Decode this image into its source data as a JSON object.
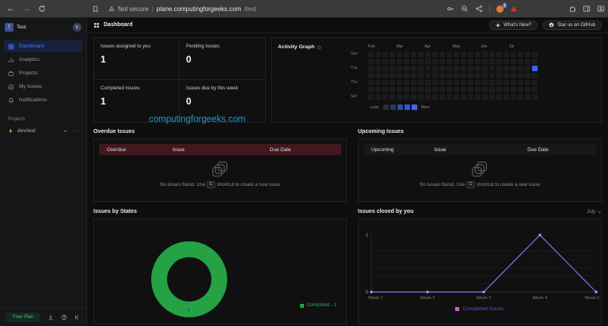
{
  "browser": {
    "security_label": "Not secure",
    "url_domain": "plane.computingforgeeks.com",
    "url_path": "/test",
    "extension_badge": "1"
  },
  "glyphs": {
    "back": "←",
    "forward": "→",
    "more": "···"
  },
  "header": {
    "title": "Dashboard",
    "whats_new_label": "What's New?",
    "star_label": "Star us on GitHub"
  },
  "sidebar": {
    "workspace": {
      "avatar_initial": "T",
      "name": "Test",
      "user_initial": "K"
    },
    "nav": [
      {
        "label": "Dashboard"
      },
      {
        "label": "Analytics"
      },
      {
        "label": "Projects"
      },
      {
        "label": "My Issues"
      },
      {
        "label": "Notifications"
      }
    ],
    "projects_heading": "Projects",
    "project_name": "dev/test",
    "plan_label": "Free Plan"
  },
  "stats": {
    "cards": [
      {
        "label": "Issues assigned to you",
        "value": "1"
      },
      {
        "label": "Pending Issues",
        "value": "0"
      },
      {
        "label": "Completed Issues",
        "value": "1"
      },
      {
        "label": "Issues due by this week",
        "value": "0"
      }
    ]
  },
  "watermark": "computingforgeeks.com",
  "activity": {
    "title": "Activity Graph",
    "months": [
      "Feb",
      "Mar",
      "Apr",
      "May",
      "Jun",
      "Jul"
    ],
    "day_labels": [
      "Sun",
      "Tue",
      "Thu",
      "Sat"
    ],
    "weeks": 24,
    "days_per_week": 7,
    "active_cell": {
      "week": 23,
      "day": 2
    },
    "cell_color": "#1c1c1e",
    "active_color": "#3a63e8",
    "legend": {
      "less": "Less",
      "more": "More",
      "colors": [
        "#2e2e30",
        "#24386e",
        "#2c4ba8",
        "#3558d4",
        "#3f6af5"
      ]
    }
  },
  "overdue": {
    "title": "Overdue Issues",
    "columns": [
      "Overdue",
      "Issue",
      "Due Date"
    ],
    "empty": {
      "prefix": "No issues found. Use",
      "key": "C",
      "suffix": "shortcut to create a new issue"
    }
  },
  "upcoming": {
    "title": "Upcoming Issues",
    "columns": [
      "Upcoming",
      "Issue",
      "Due Date"
    ],
    "empty": {
      "prefix": "No issues found. Use",
      "key": "C",
      "suffix": "shortcut to create a new issue"
    }
  },
  "states": {
    "title": "Issues by States",
    "value_label": "1",
    "legend_label": "Completed - 1",
    "color": "#25a244"
  },
  "closed": {
    "title": "Issues closed by you",
    "month_filter": "July",
    "legend_label": "Completed Issues",
    "line_color": "#8d6fe8",
    "point_color": "#b9a2f5",
    "legend_swatch_color": "#d45fd0",
    "legend_text_color": "#5f55d6"
  },
  "chart_data": [
    {
      "type": "pie",
      "title": "Issues by States",
      "labels": [
        "Completed"
      ],
      "values": [
        1
      ],
      "colors": [
        "#25a244"
      ],
      "donut": true,
      "legend_position": "bottom-right",
      "legend_entries": [
        "Completed - 1"
      ]
    },
    {
      "type": "line",
      "title": "Issues closed by you",
      "categories": [
        "Week 1",
        "Week 2",
        "Week 3",
        "Week 4",
        "Week 5"
      ],
      "series": [
        {
          "name": "Completed Issues",
          "values": [
            0,
            0,
            0,
            1,
            0
          ]
        }
      ],
      "ylim": [
        0,
        1
      ],
      "yticks": [
        "0",
        "1"
      ],
      "grid": true,
      "filter": "July",
      "legend_position": "bottom-center"
    },
    {
      "type": "heatmap",
      "title": "Activity Graph",
      "x_labels": [
        "Feb",
        "Mar",
        "Apr",
        "May",
        "Jun",
        "Jul"
      ],
      "y_labels": [
        "Sun",
        "Tue",
        "Thu",
        "Sat"
      ],
      "weeks": 24,
      "active": {
        "week": 23,
        "row": "Tue",
        "value": 1
      },
      "legend": [
        "Less",
        "More"
      ]
    }
  ]
}
